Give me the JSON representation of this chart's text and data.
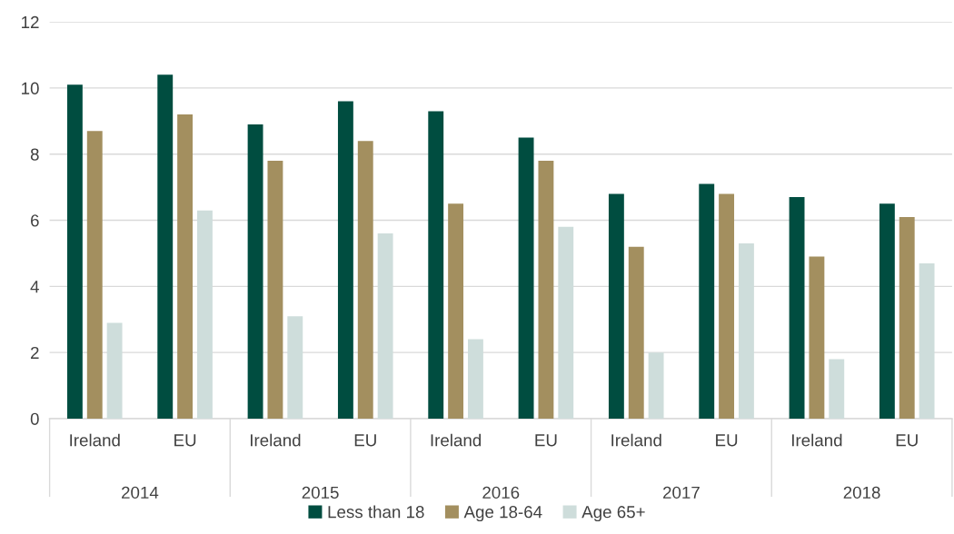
{
  "chart_data": {
    "type": "bar",
    "categories": [
      "Ireland",
      "EU",
      "Ireland",
      "EU",
      "Ireland",
      "EU",
      "Ireland",
      "EU",
      "Ireland",
      "EU"
    ],
    "series": [
      {
        "name": "Less than 18",
        "color": "#004d40",
        "values": [
          10.1,
          10.4,
          8.9,
          9.6,
          9.3,
          8.5,
          6.8,
          7.1,
          6.7,
          6.5
        ]
      },
      {
        "name": "Age 18-64",
        "color": "#a38f5f",
        "values": [
          8.7,
          9.2,
          7.8,
          8.4,
          6.5,
          7.8,
          5.2,
          6.8,
          4.9,
          6.1
        ]
      },
      {
        "name": "Age 65+",
        "color": "#cedddb",
        "values": [
          2.9,
          6.3,
          3.1,
          5.6,
          2.4,
          5.8,
          2.0,
          5.3,
          1.8,
          4.7
        ]
      }
    ],
    "annotations": [
      "2014",
      "2015",
      "2016",
      "2017",
      "2018"
    ],
    "ylim": [
      0,
      12
    ],
    "yticks": [
      0,
      2,
      4,
      6,
      8,
      10,
      12
    ],
    "grid": "y",
    "legend": "bottom"
  }
}
